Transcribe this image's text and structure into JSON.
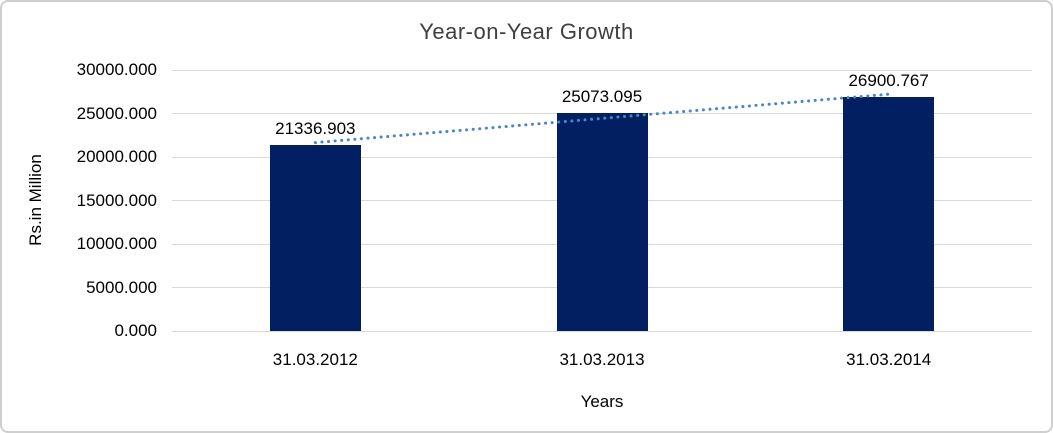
{
  "chart_data": {
    "type": "bar",
    "title": "Year-on-Year Growth",
    "categories": [
      "31.03.2012",
      "31.03.2013",
      "31.03.2014"
    ],
    "values": [
      21336.903,
      25073.095,
      26900.767
    ],
    "data_labels": [
      "21336.903",
      "25073.095",
      "26900.767"
    ],
    "xlabel": "Years",
    "ylabel": "Rs.in Million",
    "ylim": [
      0,
      30000
    ],
    "y_ticks": [
      0,
      5000,
      10000,
      15000,
      20000,
      25000,
      30000
    ],
    "y_tick_labels": [
      "0.000",
      "5000.000",
      "10000.000",
      "15000.000",
      "20000.000",
      "25000.000",
      "30000.000"
    ],
    "grid": "horizontal",
    "legend": "none",
    "trendline": {
      "type": "linear",
      "style": "dotted"
    },
    "colors": {
      "bar": "#022061",
      "trendline": "#4a86c5",
      "gridline": "#d9d9d9",
      "border": "#cfcfcf",
      "title_text": "#3f3f3f",
      "axis_text": "#000000"
    }
  }
}
